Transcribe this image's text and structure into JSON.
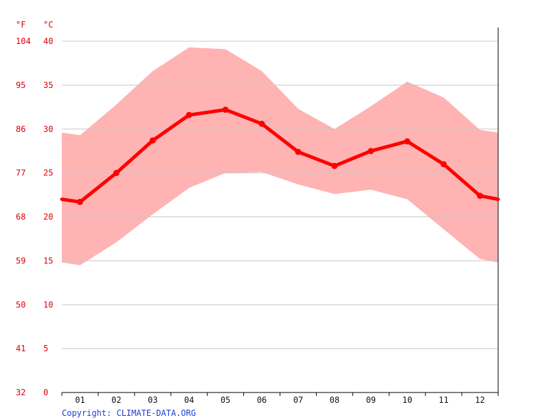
{
  "chart_data": {
    "type": "line",
    "units": {
      "left_outer": "°F",
      "left_inner": "°C"
    },
    "y_ticks_c": [
      0,
      5,
      10,
      15,
      20,
      25,
      30,
      35,
      40
    ],
    "y_ticks_f": [
      32,
      41,
      50,
      59,
      68,
      77,
      86,
      95,
      104
    ],
    "ylim": [
      0,
      40
    ],
    "categories": [
      "01",
      "02",
      "03",
      "04",
      "05",
      "06",
      "07",
      "08",
      "09",
      "10",
      "11",
      "12"
    ],
    "series": [
      {
        "values": [
          21.7,
          25.0,
          28.7,
          31.6,
          32.2,
          30.6,
          27.4,
          25.8,
          27.5,
          28.6,
          26.0,
          22.4
        ]
      }
    ],
    "band_max": [
      29.3,
      32.8,
      36.6,
      39.3,
      39.1,
      36.6,
      32.3,
      30.0,
      32.6,
      35.4,
      33.6,
      29.9
    ],
    "band_min": [
      14.5,
      17.1,
      20.3,
      23.3,
      25.0,
      25.1,
      23.7,
      22.6,
      23.1,
      22.0,
      18.6,
      15.2
    ],
    "edge_values": {
      "mean": 22.0,
      "max": 29.6,
      "min": 14.8
    },
    "grid": true,
    "colors": {
      "line": "#ff0000",
      "band": "#ffb3b3",
      "axis_text": "#d9000d",
      "grid": "#c8c8c8"
    }
  },
  "footer": {
    "copyright": "Copyright: CLIMATE-DATA.ORG"
  }
}
